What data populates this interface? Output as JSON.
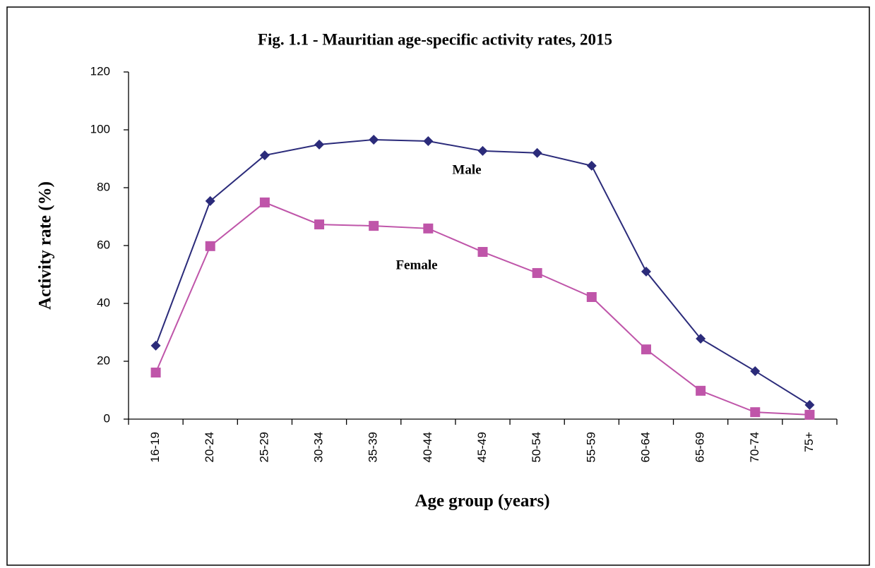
{
  "chart_data": {
    "type": "line",
    "title": "Fig. 1.1 - Mauritian age-specific activity rates, 2015",
    "x_label": "Age group (years)",
    "y_label": "Activity rate (%)",
    "categories": [
      "16-19",
      "20-24",
      "25-29",
      "30-34",
      "35-39",
      "40-44",
      "45-49",
      "50-54",
      "55-59",
      "60-64",
      "65-69",
      "70-74",
      "75+"
    ],
    "series": [
      {
        "name": "Male",
        "color": "#2b2b7a",
        "marker": "diamond",
        "values": [
          25.4,
          75.4,
          91.2,
          94.9,
          96.6,
          96.1,
          92.7,
          92.0,
          87.6,
          51.0,
          27.8,
          16.6,
          4.9
        ]
      },
      {
        "name": "Female",
        "color": "#bf55a9",
        "marker": "square",
        "values": [
          16.1,
          59.8,
          74.9,
          67.3,
          66.8,
          65.9,
          57.8,
          50.5,
          42.2,
          24.1,
          9.8,
          2.4,
          1.5
        ]
      }
    ],
    "ylim": [
      0,
      120
    ],
    "yticks": [
      0,
      20,
      40,
      60,
      80,
      100,
      120
    ],
    "grid": false
  }
}
